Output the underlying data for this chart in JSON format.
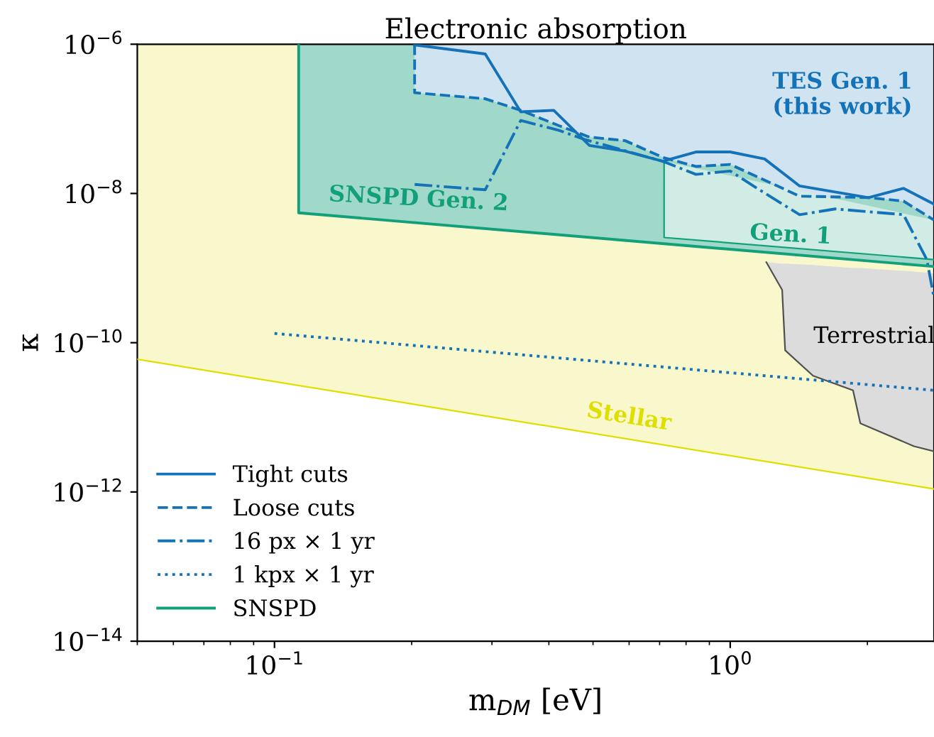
{
  "chart_data": {
    "type": "line",
    "title": "Electronic absorption",
    "xlabel": "m$_{DM}$ [eV]",
    "ylabel": "κ",
    "log": "xy",
    "xlim": [
      0.05,
      2.8
    ],
    "ylim": [
      1e-14,
      1e-06
    ],
    "xticks": [
      {
        "value": 0.1,
        "label": "10$^{−1}$"
      },
      {
        "value": 1,
        "label": "10$^{0}$"
      }
    ],
    "yticks": [
      {
        "value": 1e-14,
        "label": "10$^{−14}$"
      },
      {
        "value": 1e-12,
        "label": "10$^{−12}$"
      },
      {
        "value": 1e-10,
        "label": "10$^{−10}$"
      },
      {
        "value": 1e-08,
        "label": "10$^{−8}$"
      },
      {
        "value": 1e-06,
        "label": "10$^{−6}$"
      }
    ],
    "grid": false,
    "legend": "bottom left",
    "marker": "none",
    "series": [
      {
        "color": "#dede00",
        "line_style": "solid",
        "x": [
          0.05,
          2.8
        ],
        "values": [
          6e-11,
          1.1e-12
        ],
        "lower": [
          6e-11,
          1.1e-12
        ],
        "upper": [
          1e-06,
          1e-06
        ]
      },
      {
        "color": "#505050",
        "line_style": "solid",
        "x": [
          1.2,
          1.3,
          1.32,
          1.52,
          1.86,
          1.93,
          2.53,
          2.8
        ],
        "values": [
          1.2e-09,
          5.1e-10,
          7.9e-11,
          3.6e-11,
          2.3e-11,
          8.3e-12,
          4.1e-12,
          3.5e-12
        ],
        "lower": [
          1.2e-09,
          5.1e-10,
          7.9e-11,
          3.6e-11,
          2.3e-11,
          8.3e-12,
          4.1e-12,
          3.5e-12
        ],
        "upper": [
          1.2e-09,
          1.15e-09,
          1.15e-09,
          1.1e-09,
          1e-09,
          1e-09,
          9e-10,
          8.5e-10
        ]
      },
      {
        "color": "#12a07a",
        "line_style": "solid",
        "x": [
          0.716,
          0.716,
          2.8
        ],
        "values": [
          2.7e-08,
          2.57e-09,
          1.3e-09
        ],
        "lower": [
          2.7e-08,
          2.57e-09,
          1.3e-09
        ],
        "upper": [
          2.7e-08,
          2.7e-08,
          4.4e-09
        ]
      },
      {
        "name": "Tight cuts",
        "color": "#1473b8",
        "line_style": "solid",
        "x": [
          0.203,
          0.29,
          0.347,
          0.41,
          0.491,
          0.588,
          0.711,
          0.841,
          1.0,
          1.19,
          1.42,
          2.01,
          2.4,
          2.8
        ],
        "values": [
          9.8e-07,
          7.4e-07,
          1.24e-07,
          1.3e-07,
          4.4e-08,
          3.7e-08,
          2.7e-08,
          3.6e-08,
          3.6e-08,
          2.9e-08,
          1.26e-08,
          8.8e-09,
          1.17e-08,
          7.2e-09
        ]
      },
      {
        "name": "Loose cuts",
        "color": "#1473b8",
        "line_style": "dashed",
        "x": [
          0.203,
          0.203,
          0.29,
          0.347,
          0.421,
          0.491,
          0.588,
          0.711,
          0.841,
          1.0,
          1.42,
          2.01,
          2.4,
          2.8
        ],
        "values": [
          9.8e-07,
          2.24e-07,
          1.86e-07,
          1.3e-07,
          8.1e-08,
          5.7e-08,
          5.1e-08,
          3.05e-08,
          2.3e-08,
          2.45e-08,
          9.2e-09,
          8.8e-09,
          7.9e-09,
          4.4e-09
        ],
        "lower": [
          9.8e-07,
          2.24e-07,
          1.86e-07,
          1.3e-07,
          8.1e-08,
          5.7e-08,
          5.1e-08,
          3.05e-08,
          2.3e-08,
          2.45e-08,
          9.2e-09,
          8.8e-09,
          7.9e-09,
          4.4e-09
        ],
        "upper": [
          1e-06,
          1e-06,
          1e-06,
          1e-06,
          1e-06,
          1e-06,
          1e-06,
          1e-06,
          1e-06,
          1e-06,
          1e-06,
          1e-06,
          1e-06,
          1e-06
        ]
      },
      {
        "name": "16 px × 1 yr",
        "color": "#1473b8",
        "line_style": "dashdot",
        "x": [
          0.203,
          0.29,
          0.347,
          0.421,
          0.479,
          0.711,
          0.841,
          1.0,
          1.17,
          1.42,
          1.7,
          2.4,
          2.7,
          2.8
        ],
        "values": [
          1.32e-08,
          1.12e-08,
          9.5e-08,
          7e-08,
          5.3e-08,
          2.7e-08,
          1.8e-08,
          2e-08,
          1.08e-08,
          5.2e-09,
          6.2e-09,
          5.2e-09,
          1.3e-09,
          4e-10
        ]
      },
      {
        "name": "1 kpx × 1 yr",
        "color": "#1473b8",
        "line_style": "dotted",
        "x": [
          0.1,
          2.8
        ],
        "values": [
          1.33e-10,
          2.3e-11
        ]
      },
      {
        "name": "SNSPD",
        "color": "#12a07a",
        "line_style": "solid",
        "x": [
          0.113,
          0.113,
          2.8
        ],
        "values": [
          1e-06,
          5.5e-09,
          1.05e-09
        ],
        "lower": [
          1e-06,
          5.5e-09,
          1.05e-09
        ],
        "upper": [
          1e-06,
          1e-06,
          1e-06
        ]
      }
    ],
    "annotations": [
      "TES Gen. 1\n(this work)",
      "SNSPD Gen. 2",
      "Gen. 1",
      "Terrestrial",
      "Stellar"
    ]
  }
}
